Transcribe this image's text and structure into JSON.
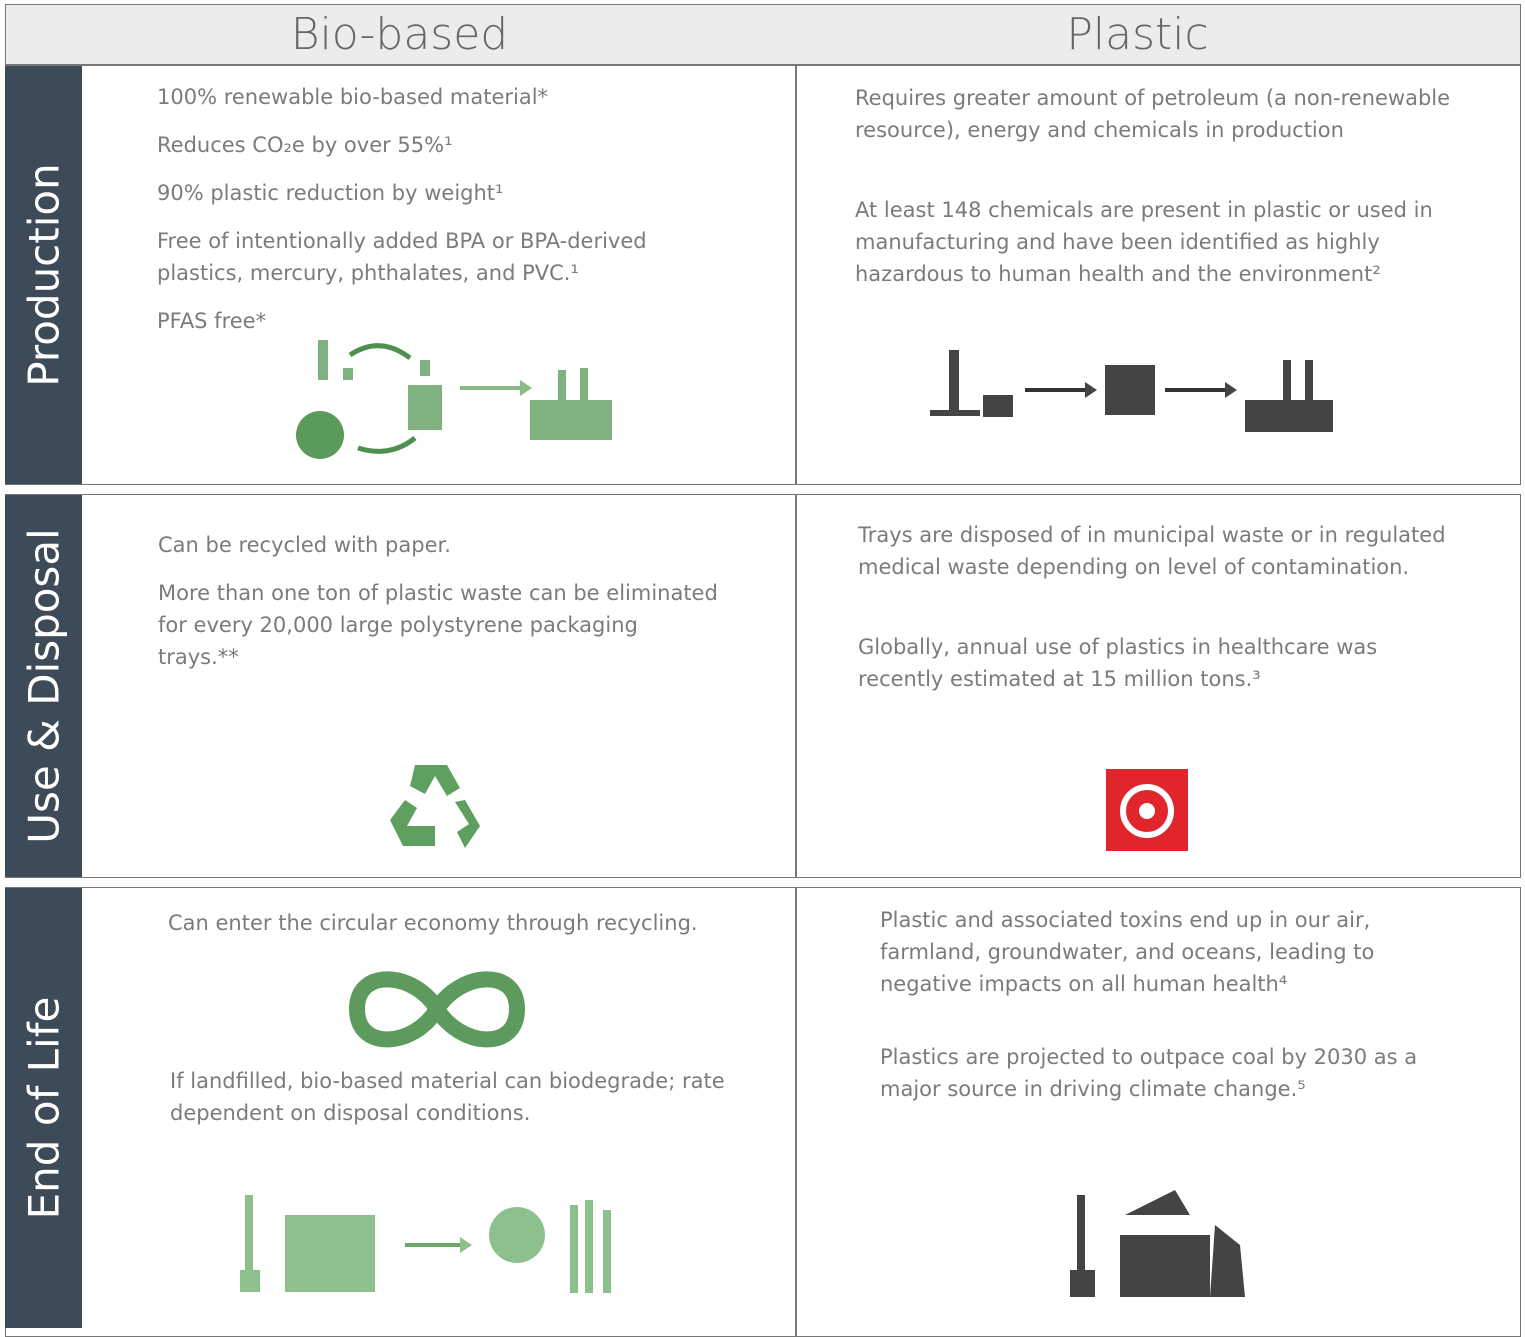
{
  "header": {
    "columns": [
      "Bio-based",
      "Plastic"
    ]
  },
  "rows": [
    {
      "label": "Production",
      "bio": [
        "100% renewable bio-based material*",
        "Reduces CO₂e by over 55%¹",
        "90% plastic reduction by weight¹",
        "Free of intentionally added BPA or BPA-derived plastics, mercury, phthalates, and PVC.¹",
        "PFAS free*"
      ],
      "plastic": [
        "Requires greater amount of petroleum (a non-renewable resource), energy and chemicals in production",
        "At least 148 chemicals are present in plastic or used in manufacturing and have been identified as highly hazardous to human health and the environment²"
      ]
    },
    {
      "label": "Use & Disposal",
      "bio": [
        "Can be recycled with paper.",
        "More than one ton of plastic waste can be eliminated for every 20,000 large polystyrene packaging trays.**"
      ],
      "plastic": [
        "Trays are disposed of in municipal waste or in regulated medical waste depending on level of contamination.",
        "Globally, annual use of plastics in healthcare was recently estimated at 15 million tons.³"
      ]
    },
    {
      "label": "End of Life",
      "bio": [
        "Can enter the circular economy through recycling.",
        "If landfilled, bio-based material can biodegrade; rate dependent on disposal conditions."
      ],
      "plastic": [
        "Plastic and associated toxins end up in our air, farmland, groundwater, and oceans, leading to negative impacts on all human health⁴",
        "Plastics are projected to outpace coal by 2030 as a major source in driving climate change.⁵"
      ]
    }
  ]
}
